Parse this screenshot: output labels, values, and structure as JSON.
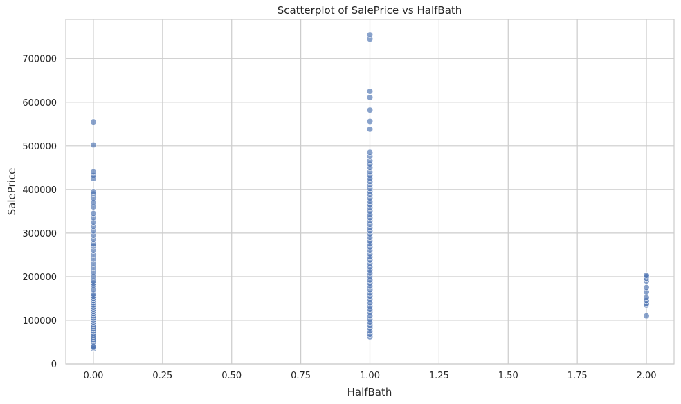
{
  "chart_data": {
    "type": "scatter",
    "title": "Scatterplot of SalePrice vs HalfBath",
    "xlabel": "HalfBath",
    "ylabel": "SalePrice",
    "xlim": [
      -0.1,
      2.1
    ],
    "ylim": [
      0,
      790000
    ],
    "xticks": [
      0.0,
      0.25,
      0.5,
      0.75,
      1.0,
      1.25,
      1.5,
      1.75,
      2.0
    ],
    "xtick_labels": [
      "0.00",
      "0.25",
      "0.50",
      "0.75",
      "1.00",
      "1.25",
      "1.50",
      "1.75",
      "2.00"
    ],
    "yticks": [
      0,
      100000,
      200000,
      300000,
      400000,
      500000,
      600000,
      700000
    ],
    "ytick_labels": [
      "0",
      "100000",
      "200000",
      "300000",
      "400000",
      "500000",
      "600000",
      "700000"
    ],
    "grid": true,
    "marker_color": "#4c72b0",
    "series": [
      {
        "points": [
          [
            0,
            35000
          ],
          [
            0,
            37900
          ],
          [
            0,
            40000
          ],
          [
            0,
            50000
          ],
          [
            0,
            55000
          ],
          [
            0,
            60000
          ],
          [
            0,
            65000
          ],
          [
            0,
            70000
          ],
          [
            0,
            75000
          ],
          [
            0,
            80000
          ],
          [
            0,
            85000
          ],
          [
            0,
            90000
          ],
          [
            0,
            95000
          ],
          [
            0,
            100000
          ],
          [
            0,
            105000
          ],
          [
            0,
            110000
          ],
          [
            0,
            115000
          ],
          [
            0,
            120000
          ],
          [
            0,
            125000
          ],
          [
            0,
            130000
          ],
          [
            0,
            135000
          ],
          [
            0,
            140000
          ],
          [
            0,
            145000
          ],
          [
            0,
            150000
          ],
          [
            0,
            155000
          ],
          [
            0,
            160000
          ],
          [
            0,
            170000
          ],
          [
            0,
            180000
          ],
          [
            0,
            185000
          ],
          [
            0,
            190000
          ],
          [
            0,
            200000
          ],
          [
            0,
            210000
          ],
          [
            0,
            220000
          ],
          [
            0,
            230000
          ],
          [
            0,
            240000
          ],
          [
            0,
            250000
          ],
          [
            0,
            260000
          ],
          [
            0,
            270000
          ],
          [
            0,
            275000
          ],
          [
            0,
            285000
          ],
          [
            0,
            295000
          ],
          [
            0,
            305000
          ],
          [
            0,
            315000
          ],
          [
            0,
            325000
          ],
          [
            0,
            335000
          ],
          [
            0,
            345000
          ],
          [
            0,
            360000
          ],
          [
            0,
            370000
          ],
          [
            0,
            380000
          ],
          [
            0,
            390000
          ],
          [
            0,
            395000
          ],
          [
            0,
            425000
          ],
          [
            0,
            432000
          ],
          [
            0,
            440000
          ],
          [
            0,
            502000
          ],
          [
            0,
            555000
          ],
          [
            1,
            62000
          ],
          [
            1,
            68000
          ],
          [
            1,
            75000
          ],
          [
            1,
            82000
          ],
          [
            1,
            88000
          ],
          [
            1,
            95000
          ],
          [
            1,
            102000
          ],
          [
            1,
            110000
          ],
          [
            1,
            118000
          ],
          [
            1,
            125000
          ],
          [
            1,
            132000
          ],
          [
            1,
            140000
          ],
          [
            1,
            148000
          ],
          [
            1,
            155000
          ],
          [
            1,
            162000
          ],
          [
            1,
            170000
          ],
          [
            1,
            178000
          ],
          [
            1,
            185000
          ],
          [
            1,
            192000
          ],
          [
            1,
            200000
          ],
          [
            1,
            208000
          ],
          [
            1,
            215000
          ],
          [
            1,
            222000
          ],
          [
            1,
            230000
          ],
          [
            1,
            238000
          ],
          [
            1,
            245000
          ],
          [
            1,
            252000
          ],
          [
            1,
            260000
          ],
          [
            1,
            268000
          ],
          [
            1,
            275000
          ],
          [
            1,
            282000
          ],
          [
            1,
            290000
          ],
          [
            1,
            298000
          ],
          [
            1,
            305000
          ],
          [
            1,
            312000
          ],
          [
            1,
            320000
          ],
          [
            1,
            328000
          ],
          [
            1,
            335000
          ],
          [
            1,
            342000
          ],
          [
            1,
            350000
          ],
          [
            1,
            358000
          ],
          [
            1,
            365000
          ],
          [
            1,
            372000
          ],
          [
            1,
            380000
          ],
          [
            1,
            388000
          ],
          [
            1,
            395000
          ],
          [
            1,
            402000
          ],
          [
            1,
            410000
          ],
          [
            1,
            418000
          ],
          [
            1,
            425000
          ],
          [
            1,
            432000
          ],
          [
            1,
            440000
          ],
          [
            1,
            450000
          ],
          [
            1,
            458000
          ],
          [
            1,
            466000
          ],
          [
            1,
            476000
          ],
          [
            1,
            485000
          ],
          [
            1,
            538000
          ],
          [
            1,
            556000
          ],
          [
            1,
            582000
          ],
          [
            1,
            611000
          ],
          [
            1,
            625000
          ],
          [
            1,
            745000
          ],
          [
            1,
            755000
          ],
          [
            2,
            110000
          ],
          [
            2,
            135000
          ],
          [
            2,
            138000
          ],
          [
            2,
            145000
          ],
          [
            2,
            152000
          ],
          [
            2,
            165000
          ],
          [
            2,
            175000
          ],
          [
            2,
            190000
          ],
          [
            2,
            196000
          ],
          [
            2,
            200000
          ],
          [
            2,
            203000
          ]
        ]
      }
    ]
  }
}
